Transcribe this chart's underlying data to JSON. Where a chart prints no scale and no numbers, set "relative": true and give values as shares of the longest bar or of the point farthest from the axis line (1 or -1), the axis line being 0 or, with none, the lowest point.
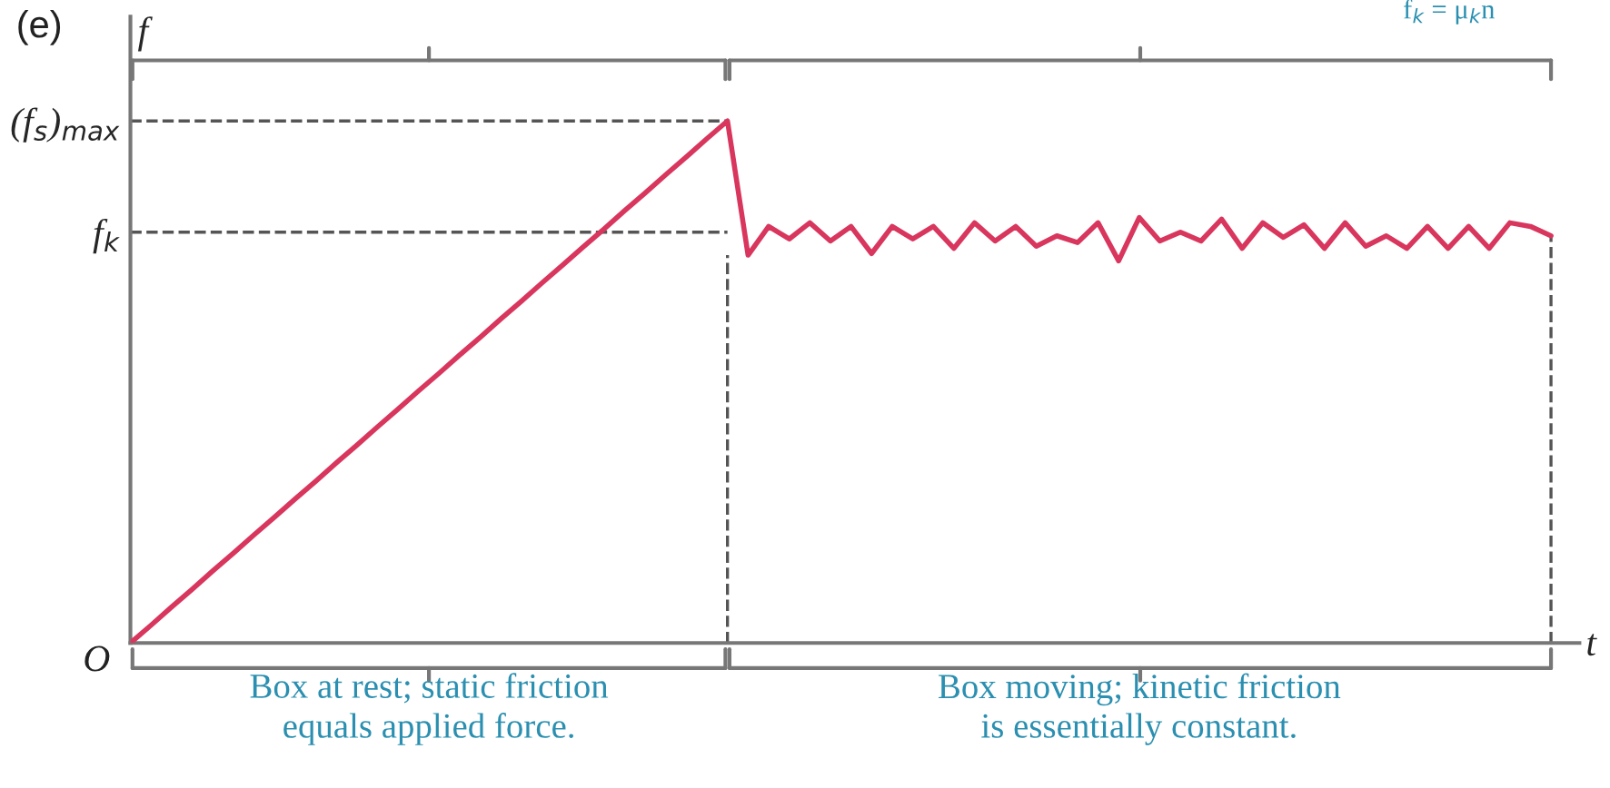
{
  "chart_data": {
    "type": "line",
    "relative": true,
    "ylabel": "f",
    "xlabel": "t",
    "categories": [
      null,
      null,
      null,
      null,
      null,
      null,
      null,
      null,
      null,
      null,
      null,
      null,
      null,
      null,
      null,
      null,
      null,
      null,
      null,
      null,
      null,
      null,
      null,
      null,
      null,
      null,
      null,
      null,
      null,
      null,
      null,
      null,
      null,
      null,
      null,
      null,
      null,
      null,
      null,
      null,
      null,
      null,
      null,
      null,
      null,
      null,
      null,
      null,
      null,
      null,
      null,
      null,
      null,
      null,
      null,
      null,
      null,
      null,
      null,
      null,
      null,
      null,
      null,
      null,
      null,
      null,
      null,
      null,
      null,
      null
    ],
    "series": [
      {
        "color": "#d9365e",
        "values": [
          0,
          0.034,
          0.069,
          0.103,
          0.138,
          0.172,
          0.207,
          0.241,
          0.276,
          0.31,
          0.345,
          0.379,
          0.414,
          0.448,
          0.483,
          0.517,
          0.552,
          0.586,
          0.621,
          0.655,
          0.69,
          0.724,
          0.759,
          0.793,
          0.828,
          0.862,
          0.897,
          0.931,
          0.966,
          1,
          0.743,
          0.798,
          0.774,
          0.805,
          0.77,
          0.798,
          0.746,
          0.798,
          0.774,
          0.798,
          0.756,
          0.805,
          0.77,
          0.798,
          0.76,
          0.78,
          0.767,
          0.805,
          0.732,
          0.815,
          0.77,
          0.787,
          0.77,
          0.812,
          0.756,
          0.805,
          0.777,
          0.801,
          0.756,
          0.805,
          0.76,
          0.78,
          0.756,
          0.798,
          0.756,
          0.798,
          0.756,
          0.805,
          0.798,
          0.78
        ]
      }
    ],
    "ref_lines": [
      {
        "axis": "y",
        "value": 1,
        "label": "(f$_{s}$)$_{max}$",
        "line_style": "dashed",
        "color": "#555555"
      },
      {
        "axis": "y",
        "value": 0.787,
        "label": "f$_{k}$",
        "line_style": "dashed",
        "color": "#555555"
      }
    ],
    "annotations": [
      "(e)",
      "O",
      "Box at rest; static friction\nequals applied force.",
      "Box moving; kinetic friction\nis essentially constant.",
      "f$_{k}$ = μ$_{k}$n"
    ],
    "grid": false,
    "legend": false,
    "marker": "none",
    "line_style": "solid"
  }
}
